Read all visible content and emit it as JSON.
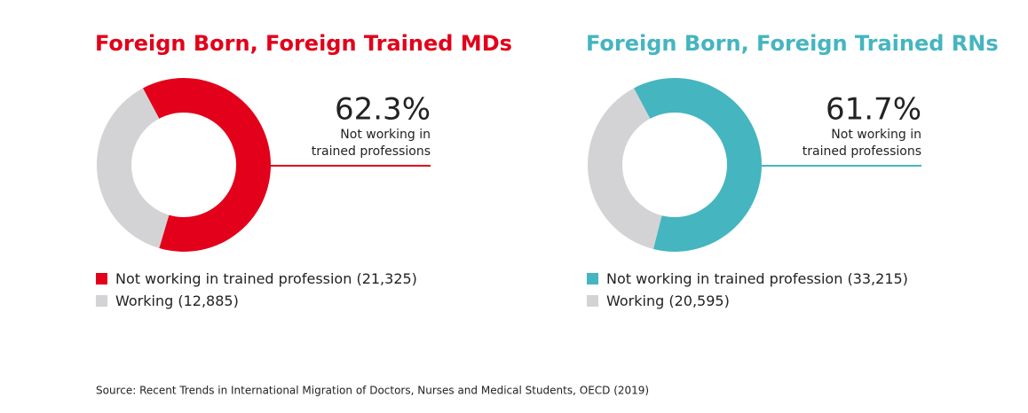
{
  "chart_data": [
    {
      "type": "donut",
      "title": "Foreign Born, Foreign Trained MDs",
      "title_color": "#e2001a",
      "categories": [
        "Not working in trained profession",
        "Working"
      ],
      "values": [
        21325,
        12885
      ],
      "value_labels": [
        "(21,325)",
        "(12,885)"
      ],
      "colors": [
        "#e2001a",
        "#d3d3d5"
      ],
      "annotation_value": "62.3%",
      "annotation_text": [
        "Not working in",
        "trained professions"
      ]
    },
    {
      "type": "donut",
      "title": "Foreign Born, Foreign Trained RNs",
      "title_color": "#45b5c0",
      "categories": [
        "Not working in trained profession",
        "Working"
      ],
      "values": [
        33215,
        20595
      ],
      "value_labels": [
        "(33,215)",
        "(20,595)"
      ],
      "colors": [
        "#45b5c0",
        "#d3d3d5"
      ],
      "annotation_value": "61.7%",
      "annotation_text": [
        "Not working in",
        "trained professions"
      ]
    }
  ],
  "source": "Source: Recent Trends in International Migration of Doctors, Nurses and Medical Students, OECD (2019)"
}
